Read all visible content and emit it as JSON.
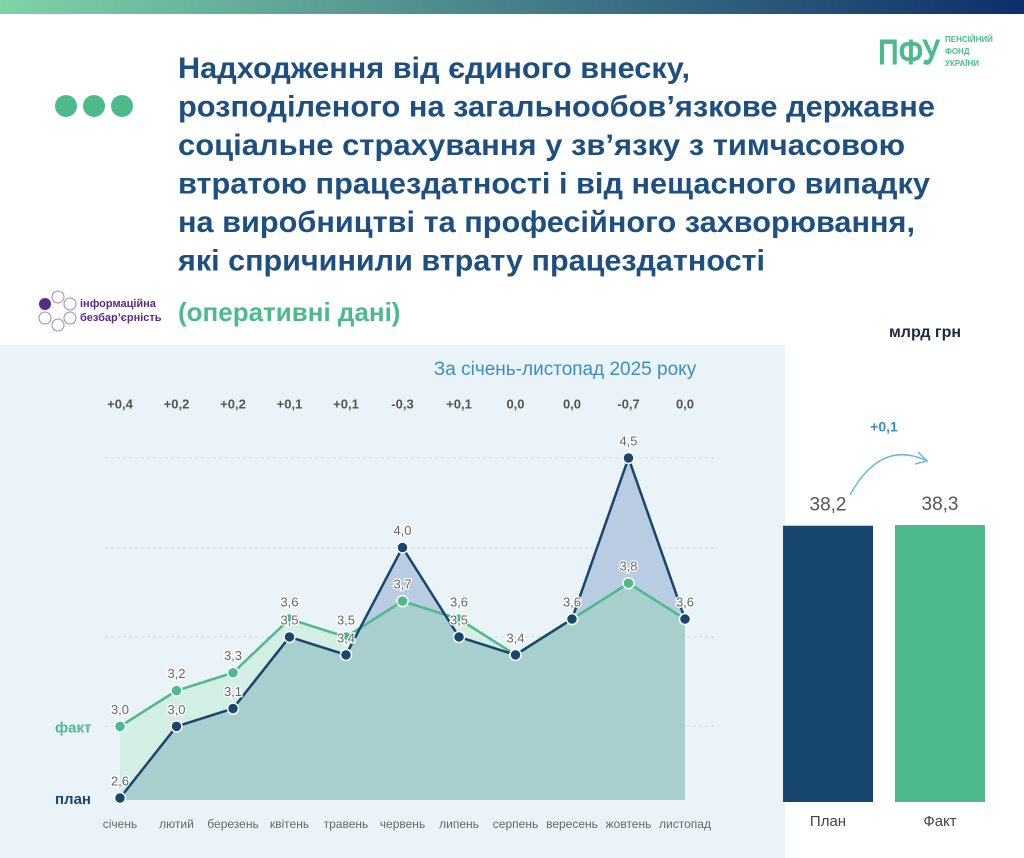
{
  "header": {
    "title_lines": [
      "Надходження від єдиного внеску,",
      "розподіленого на загальнообов’язкове державне",
      "соціальне страхування у зв’язку з тимчасовою",
      "втратою працездатності і від нещасного випадку",
      "на виробництві та професійного захворювання,",
      "які спричинили втрату працездатності"
    ],
    "subtitle": "(оперативні дані)",
    "logo": {
      "abbr": "ПФУ",
      "name_lines": [
        "ПЕНСІЙНИЙ",
        "ФОНД",
        "УКРАЇНИ"
      ]
    },
    "accessibility_logo": [
      "інформаційна",
      "безбар’єрність"
    ]
  },
  "chart_data": [
    {
      "type": "line",
      "title": "За січень-листопад 2025 року",
      "categories": [
        "січень",
        "лютий",
        "березень",
        "квітень",
        "травень",
        "червень",
        "липень",
        "серпень",
        "вересень",
        "жовтень",
        "листопад"
      ],
      "series": [
        {
          "name": "факт",
          "color": "#4dba8c",
          "values": [
            3.0,
            3.2,
            3.3,
            3.6,
            3.5,
            3.7,
            3.6,
            3.4,
            3.6,
            3.8,
            3.6
          ],
          "value_labels": [
            "3,0",
            "3,2",
            "3,3",
            "3,6",
            "3,5",
            "3,7",
            "3,6",
            "3,4",
            "3,6",
            "3,8",
            "3,6"
          ]
        },
        {
          "name": "план",
          "color": "#17466f",
          "values": [
            2.6,
            3.0,
            3.1,
            3.5,
            3.4,
            4.0,
            3.5,
            3.4,
            3.6,
            4.5,
            3.6
          ],
          "value_labels": [
            "2,6",
            "3,0",
            "3,1",
            "3,5",
            "3,4",
            "4,0",
            "3,5",
            "3,4",
            "3,6",
            "4,5",
            "3,6"
          ]
        }
      ],
      "differences": {
        "values": [
          0.4,
          0.2,
          0.2,
          0.1,
          0.1,
          -0.3,
          0.1,
          0.0,
          0.0,
          -0.7,
          0.0
        ],
        "value_labels": [
          "+0,4",
          "+0,2",
          "+0,2",
          "+0,1",
          "+0,1",
          "-0,3",
          "+0,1",
          "0,0",
          "0,0",
          "-0,7",
          "0,0"
        ]
      },
      "ylim": [
        2.6,
        4.5
      ]
    },
    {
      "type": "bar",
      "unit": "млрд грн",
      "categories": [
        "План",
        "Факт"
      ],
      "values": [
        38.2,
        38.3
      ],
      "value_labels": [
        "38,2",
        "38,3"
      ],
      "colors": [
        "#17466f",
        "#4dba8c"
      ],
      "difference": {
        "value": 0.1,
        "label": "+0,1"
      },
      "ylim": [
        0,
        38.3
      ]
    }
  ]
}
